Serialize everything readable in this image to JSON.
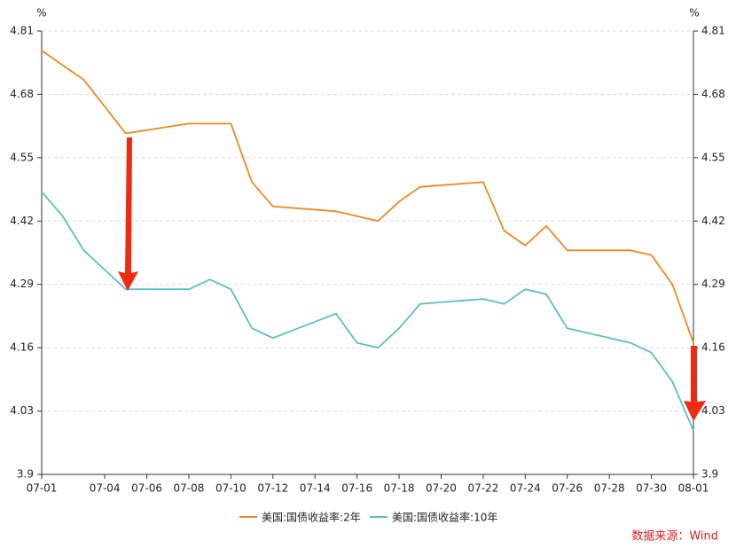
{
  "chart_data": {
    "type": "line",
    "y_unit": "%",
    "y2_unit": "%",
    "x": [
      "07-01",
      "07-02",
      "07-03",
      "07-05",
      "07-08",
      "07-09",
      "07-10",
      "07-11",
      "07-12",
      "07-15",
      "07-16",
      "07-17",
      "07-18",
      "07-19",
      "07-22",
      "07-23",
      "07-24",
      "07-25",
      "07-26",
      "07-29",
      "07-30",
      "07-31",
      "08-01"
    ],
    "series": [
      {
        "name": "美国:国债收益率:2年",
        "color": "#f0881f",
        "values": [
          4.77,
          4.74,
          4.71,
          4.6,
          4.62,
          4.62,
          4.62,
          4.5,
          4.45,
          4.44,
          4.43,
          4.42,
          4.46,
          4.49,
          4.5,
          4.4,
          4.37,
          4.41,
          4.36,
          4.36,
          4.35,
          4.29,
          4.17
        ]
      },
      {
        "name": "美国:国债收益率:10年",
        "color": "#5bbfc4",
        "values": [
          4.48,
          4.43,
          4.36,
          4.28,
          4.28,
          4.3,
          4.28,
          4.2,
          4.18,
          4.23,
          4.17,
          4.16,
          4.2,
          4.25,
          4.26,
          4.25,
          4.28,
          4.27,
          4.2,
          4.17,
          4.15,
          4.09,
          3.99
        ]
      }
    ],
    "xticks": [
      "07-01",
      "07-04",
      "07-06",
      "07-08",
      "07-10",
      "07-12",
      "07-14",
      "07-16",
      "07-18",
      "07-20",
      "07-22",
      "07-24",
      "07-26",
      "07-28",
      "07-30",
      "08-01"
    ],
    "ylim": [
      3.9,
      4.81
    ],
    "yticks": [
      3.9,
      4.03,
      4.16,
      4.29,
      4.42,
      4.55,
      4.68,
      4.81
    ],
    "y2lim": [
      3.9,
      4.81
    ],
    "y2ticks": [
      3.9,
      4.03,
      4.16,
      4.29,
      4.42,
      4.55,
      4.68,
      4.81
    ],
    "grid": true,
    "legend": "bottom",
    "source": "数据来源：Wind"
  }
}
